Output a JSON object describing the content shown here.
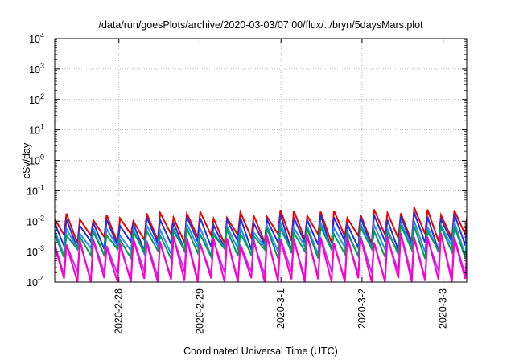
{
  "chart_data": {
    "type": "line",
    "title": "/data/run/goesPlots/archive/2020-03-03/07:00/flux/../bryn/5daysMars.plot",
    "xlabel": "Coordinated Universal Time (UTC)",
    "ylabel": "cSv/day",
    "yscale": "log",
    "ylim": [
      0.0001,
      10000
    ],
    "y_ticks": [
      {
        "base": "10",
        "exp": "-4"
      },
      {
        "base": "10",
        "exp": "-3"
      },
      {
        "base": "10",
        "exp": "-2"
      },
      {
        "base": "10",
        "exp": "-1"
      },
      {
        "base": "10",
        "exp": "0"
      },
      {
        "base": "10",
        "exp": "1"
      },
      {
        "base": "10",
        "exp": "2"
      },
      {
        "base": "10",
        "exp": "3"
      },
      {
        "base": "10",
        "exp": "4"
      }
    ],
    "xlim": [
      "2020-02-27T05:00",
      "2020-03-03T07:00"
    ],
    "x_ticks": [
      "2020-2-28",
      "2020-2-29",
      "2020-3-1",
      "2020-3-2",
      "2020-3-3"
    ],
    "grid": true,
    "cycle_days": 0.165,
    "series": [
      {
        "color": "#ee0000",
        "peaks_start": 0.013,
        "peaks_end": 0.022,
        "trough": 0.0028
      },
      {
        "color": "#2233dd",
        "peaks_start": 0.009,
        "peaks_end": 0.015,
        "trough": 0.0016
      },
      {
        "color": "#3388ff",
        "peaks_start": 0.005,
        "peaks_end": 0.008,
        "trough": 0.0011
      },
      {
        "color": "#00a050",
        "peaks_start": 0.0035,
        "peaks_end": 0.006,
        "trough": 0.0009
      },
      {
        "color": "#bb33ff",
        "peaks_start": 0.002,
        "peaks_end": 0.003,
        "trough": 0.00017
      },
      {
        "color": "#ff00cc",
        "peaks_start": 0.002,
        "peaks_end": 0.0032,
        "trough": 0.0001
      }
    ]
  }
}
